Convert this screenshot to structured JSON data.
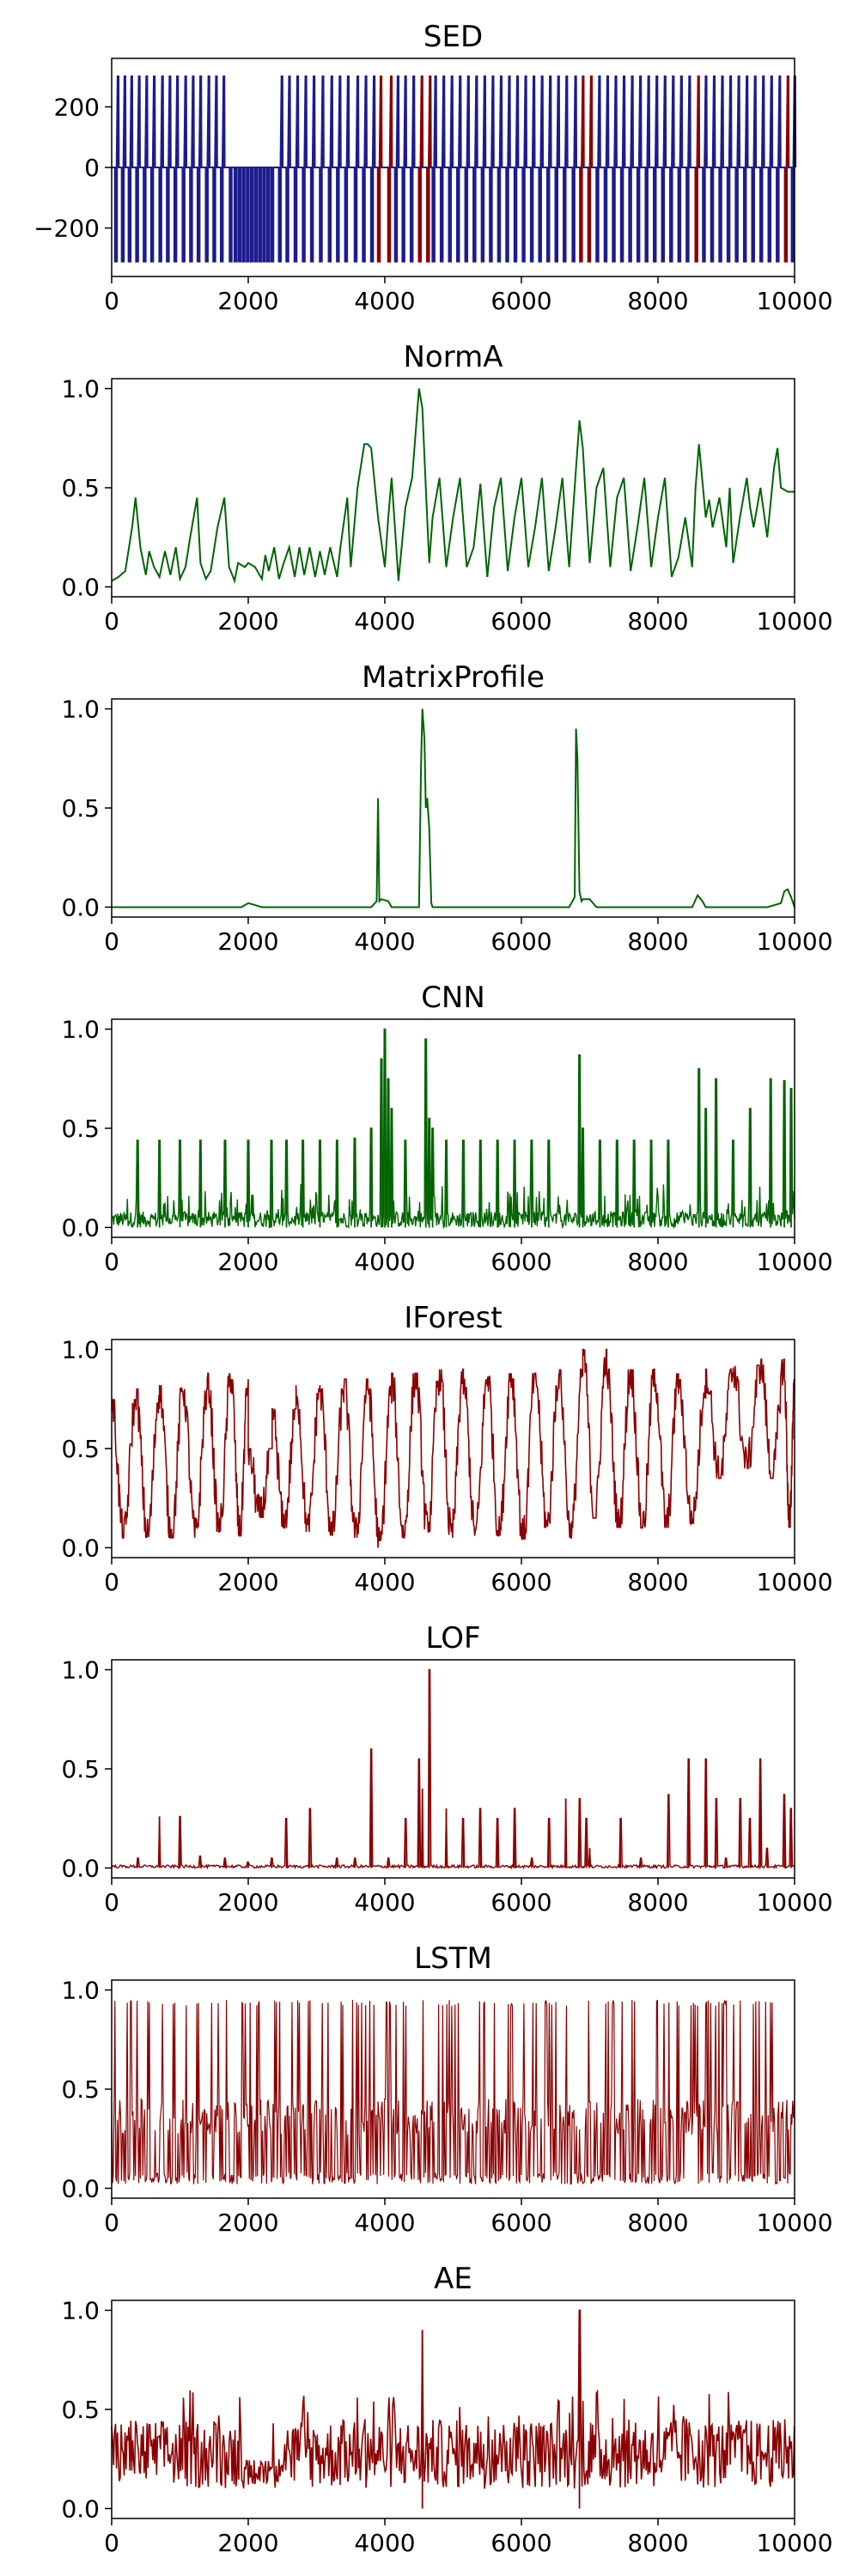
{
  "colors": {
    "sed_normal": "#1c1c8c",
    "sed_anomaly": "#8b0000",
    "green": "#006400",
    "red": "#8b0000"
  },
  "chart_data": [
    {
      "type": "line",
      "title": "SED",
      "xlim": [
        0,
        10000
      ],
      "ylim": [
        -360,
        360
      ],
      "x_ticks": [
        0,
        2000,
        4000,
        6000,
        8000,
        10000
      ],
      "y_ticks": [
        -200,
        0,
        200
      ],
      "y_tick_labels": [
        "−200",
        "0",
        "200"
      ],
      "color": "#1c1c8c",
      "pulse_amplitude": {
        "positive": 300,
        "negative": -310
      },
      "anomaly_ranges": [
        [
          3850,
          4050
        ],
        [
          4500,
          4650
        ],
        [
          6850,
          7000
        ],
        [
          8550,
          8650
        ],
        [
          9750,
          9950
        ]
      ],
      "anomaly_color": "#8b0000",
      "pulses_x": [
        50,
        150,
        250,
        360,
        470,
        580,
        700,
        810,
        920,
        1040,
        1150,
        1260,
        1380,
        1490,
        1600,
        1730,
        1800,
        1860,
        1920,
        1980,
        2040,
        2100,
        2160,
        2220,
        2280,
        2340,
        2450,
        2560,
        2680,
        2800,
        2920,
        3050,
        3180,
        3300,
        3420,
        3560,
        3680,
        3800,
        3900,
        4050,
        4150,
        4260,
        4380,
        4500,
        4620,
        4700,
        4820,
        4940,
        5060,
        5180,
        5300,
        5420,
        5540,
        5660,
        5780,
        5900,
        6020,
        6140,
        6260,
        6380,
        6500,
        6620,
        6750,
        6860,
        6980,
        7100,
        7220,
        7340,
        7460,
        7580,
        7700,
        7820,
        7940,
        8060,
        8180,
        8300,
        8420,
        8550,
        8660,
        8780,
        8900,
        9020,
        9140,
        9260,
        9380,
        9500,
        9620,
        9740,
        9860,
        9960
      ]
    },
    {
      "type": "line",
      "title": "NormA",
      "xlim": [
        0,
        10000
      ],
      "ylim": [
        -0.05,
        1.05
      ],
      "x_ticks": [
        0,
        2000,
        4000,
        6000,
        8000,
        10000
      ],
      "y_ticks": [
        0.0,
        0.5,
        1.0
      ],
      "color": "#006400",
      "x": [
        0,
        100,
        200,
        300,
        350,
        420,
        500,
        550,
        620,
        700,
        780,
        860,
        940,
        1000,
        1080,
        1150,
        1250,
        1300,
        1380,
        1450,
        1550,
        1650,
        1720,
        1800,
        1850,
        1950,
        2000,
        2100,
        2200,
        2250,
        2300,
        2380,
        2450,
        2520,
        2600,
        2680,
        2750,
        2820,
        2900,
        2980,
        3050,
        3120,
        3200,
        3300,
        3350,
        3450,
        3500,
        3600,
        3700,
        3750,
        3800,
        3900,
        4000,
        4050,
        4100,
        4200,
        4300,
        4400,
        4500,
        4550,
        4600,
        4650,
        4700,
        4800,
        4900,
        5000,
        5100,
        5200,
        5300,
        5400,
        5500,
        5600,
        5700,
        5800,
        5900,
        6000,
        6100,
        6200,
        6300,
        6400,
        6500,
        6600,
        6700,
        6800,
        6850,
        6900,
        6950,
        7000,
        7100,
        7200,
        7300,
        7400,
        7500,
        7600,
        7700,
        7800,
        7900,
        8000,
        8100,
        8200,
        8300,
        8400,
        8500,
        8550,
        8600,
        8700,
        8750,
        8800,
        8900,
        9000,
        9050,
        9100,
        9200,
        9300,
        9350,
        9400,
        9500,
        9600,
        9700,
        9750,
        9800,
        9900,
        10000
      ],
      "values": [
        0.03,
        0.05,
        0.08,
        0.3,
        0.45,
        0.2,
        0.06,
        0.18,
        0.1,
        0.05,
        0.18,
        0.06,
        0.2,
        0.04,
        0.1,
        0.25,
        0.45,
        0.12,
        0.04,
        0.08,
        0.3,
        0.45,
        0.1,
        0.03,
        0.12,
        0.1,
        0.12,
        0.1,
        0.04,
        0.16,
        0.08,
        0.2,
        0.04,
        0.12,
        0.2,
        0.05,
        0.2,
        0.06,
        0.2,
        0.05,
        0.18,
        0.06,
        0.2,
        0.05,
        0.2,
        0.45,
        0.1,
        0.5,
        0.72,
        0.72,
        0.7,
        0.35,
        0.1,
        0.35,
        0.55,
        0.03,
        0.4,
        0.55,
        1.0,
        0.9,
        0.5,
        0.12,
        0.35,
        0.55,
        0.1,
        0.35,
        0.55,
        0.1,
        0.2,
        0.52,
        0.05,
        0.4,
        0.55,
        0.08,
        0.35,
        0.55,
        0.1,
        0.3,
        0.55,
        0.08,
        0.3,
        0.55,
        0.1,
        0.6,
        0.84,
        0.7,
        0.4,
        0.12,
        0.5,
        0.6,
        0.1,
        0.45,
        0.55,
        0.08,
        0.3,
        0.55,
        0.1,
        0.35,
        0.55,
        0.05,
        0.15,
        0.35,
        0.1,
        0.5,
        0.72,
        0.35,
        0.44,
        0.3,
        0.45,
        0.2,
        0.5,
        0.12,
        0.35,
        0.55,
        0.4,
        0.3,
        0.5,
        0.25,
        0.6,
        0.7,
        0.5,
        0.48,
        0.48
      ]
    },
    {
      "type": "line",
      "title": "MatrixProfile",
      "xlim": [
        0,
        10000
      ],
      "ylim": [
        -0.05,
        1.05
      ],
      "x_ticks": [
        0,
        2000,
        4000,
        6000,
        8000,
        10000
      ],
      "y_ticks": [
        0.0,
        0.5,
        1.0
      ],
      "color": "#006400",
      "x": [
        0,
        1900,
        2000,
        2100,
        2200,
        3800,
        3880,
        3900,
        3920,
        3950,
        4050,
        4100,
        4500,
        4530,
        4550,
        4580,
        4600,
        4620,
        4650,
        4680,
        4700,
        6700,
        6780,
        6800,
        6820,
        6850,
        6880,
        6900,
        7000,
        7100,
        8500,
        8580,
        8650,
        8700,
        9600,
        9800,
        9850,
        9900,
        9950,
        10000
      ],
      "values": [
        0.0,
        0.0,
        0.02,
        0.01,
        0.0,
        0.0,
        0.03,
        0.55,
        0.03,
        0.04,
        0.03,
        0.0,
        0.0,
        0.7,
        1.0,
        0.85,
        0.5,
        0.55,
        0.4,
        0.02,
        0.0,
        0.0,
        0.05,
        0.9,
        0.75,
        0.08,
        0.03,
        0.04,
        0.04,
        0.0,
        0.0,
        0.06,
        0.03,
        0.0,
        0.0,
        0.02,
        0.08,
        0.09,
        0.05,
        0.0
      ]
    },
    {
      "type": "line",
      "title": "CNN",
      "xlim": [
        0,
        10000
      ],
      "ylim": [
        -0.05,
        1.05
      ],
      "x_ticks": [
        0,
        2000,
        4000,
        6000,
        8000,
        10000
      ],
      "y_ticks": [
        0.0,
        0.5,
        1.0
      ],
      "color": "#006400",
      "peaks": [
        [
          380,
          0.44
        ],
        [
          700,
          0.44
        ],
        [
          1000,
          0.44
        ],
        [
          1300,
          0.44
        ],
        [
          1660,
          0.44
        ],
        [
          2000,
          0.44
        ],
        [
          2340,
          0.44
        ],
        [
          2560,
          0.44
        ],
        [
          2800,
          0.44
        ],
        [
          3050,
          0.44
        ],
        [
          3300,
          0.44
        ],
        [
          3560,
          0.45
        ],
        [
          3800,
          0.5
        ],
        [
          3950,
          0.85
        ],
        [
          4000,
          1.0
        ],
        [
          4050,
          0.75
        ],
        [
          4100,
          0.6
        ],
        [
          4300,
          0.44
        ],
        [
          4600,
          0.95
        ],
        [
          4650,
          0.55
        ],
        [
          4700,
          0.5
        ],
        [
          4900,
          0.44
        ],
        [
          5150,
          0.44
        ],
        [
          5400,
          0.44
        ],
        [
          5650,
          0.44
        ],
        [
          5900,
          0.44
        ],
        [
          6150,
          0.44
        ],
        [
          6400,
          0.44
        ],
        [
          6850,
          0.87
        ],
        [
          6900,
          0.5
        ],
        [
          7150,
          0.44
        ],
        [
          7400,
          0.44
        ],
        [
          7650,
          0.44
        ],
        [
          7900,
          0.44
        ],
        [
          8150,
          0.44
        ],
        [
          8600,
          0.8
        ],
        [
          8700,
          0.6
        ],
        [
          8850,
          0.75
        ],
        [
          9100,
          0.44
        ],
        [
          9350,
          0.6
        ],
        [
          9650,
          0.75
        ],
        [
          9850,
          0.74
        ],
        [
          9950,
          0.7
        ]
      ]
    },
    {
      "type": "line",
      "title": "IForest",
      "xlim": [
        0,
        10000
      ],
      "ylim": [
        -0.05,
        1.05
      ],
      "x_ticks": [
        0,
        2000,
        4000,
        6000,
        8000,
        10000
      ],
      "y_ticks": [
        0.0,
        0.5,
        1.0
      ],
      "color": "#8b0000",
      "cycles": [
        [
          0,
          0.75,
          0.05
        ],
        [
          350,
          0.8,
          0.05
        ],
        [
          700,
          0.82,
          0.05
        ],
        [
          1050,
          0.8,
          0.05
        ],
        [
          1400,
          0.88,
          0.08
        ],
        [
          1750,
          0.85,
          0.06
        ],
        [
          2000,
          0.5,
          0.15
        ],
        [
          2350,
          0.7,
          0.1
        ],
        [
          2700,
          0.82,
          0.08
        ],
        [
          3050,
          0.8,
          0.06
        ],
        [
          3400,
          0.85,
          0.05
        ],
        [
          3750,
          0.82,
          0.0
        ],
        [
          4100,
          0.88,
          0.05
        ],
        [
          4450,
          0.88,
          0.08
        ],
        [
          4800,
          0.9,
          0.05
        ],
        [
          5150,
          0.85,
          0.06
        ],
        [
          5500,
          0.88,
          0.06
        ],
        [
          5850,
          0.88,
          0.04
        ],
        [
          6200,
          0.88,
          0.1
        ],
        [
          6550,
          0.9,
          0.05
        ],
        [
          6900,
          1.0,
          0.15
        ],
        [
          7250,
          0.9,
          0.1
        ],
        [
          7600,
          0.9,
          0.1
        ],
        [
          7950,
          0.88,
          0.1
        ],
        [
          8300,
          0.85,
          0.12
        ],
        [
          8700,
          0.9,
          0.35
        ],
        [
          9100,
          0.92,
          0.4
        ],
        [
          9500,
          0.95,
          0.35
        ],
        [
          9850,
          0.85,
          0.1
        ]
      ]
    },
    {
      "type": "line",
      "title": "LOF",
      "xlim": [
        0,
        10000
      ],
      "ylim": [
        -0.05,
        1.05
      ],
      "x_ticks": [
        0,
        2000,
        4000,
        6000,
        8000,
        10000
      ],
      "y_ticks": [
        0.0,
        0.5,
        1.0
      ],
      "color": "#8b0000",
      "peaks": [
        [
          380,
          0.05
        ],
        [
          700,
          0.26
        ],
        [
          1000,
          0.26
        ],
        [
          1300,
          0.06
        ],
        [
          1660,
          0.05
        ],
        [
          2000,
          0.03
        ],
        [
          2340,
          0.05
        ],
        [
          2560,
          0.25
        ],
        [
          2900,
          0.3
        ],
        [
          3300,
          0.05
        ],
        [
          3560,
          0.05
        ],
        [
          3800,
          0.6
        ],
        [
          4050,
          0.05
        ],
        [
          4300,
          0.25
        ],
        [
          4500,
          0.55
        ],
        [
          4550,
          0.4
        ],
        [
          4650,
          1.0
        ],
        [
          4900,
          0.3
        ],
        [
          5150,
          0.25
        ],
        [
          5400,
          0.3
        ],
        [
          5650,
          0.25
        ],
        [
          5900,
          0.3
        ],
        [
          6150,
          0.05
        ],
        [
          6400,
          0.25
        ],
        [
          6650,
          0.35
        ],
        [
          6850,
          0.35
        ],
        [
          6950,
          0.25
        ],
        [
          7000,
          0.1
        ],
        [
          7450,
          0.25
        ],
        [
          7750,
          0.05
        ],
        [
          8150,
          0.37
        ],
        [
          8450,
          0.55
        ],
        [
          8700,
          0.55
        ],
        [
          8850,
          0.35
        ],
        [
          9000,
          0.05
        ],
        [
          9200,
          0.35
        ],
        [
          9350,
          0.25
        ],
        [
          9500,
          0.55
        ],
        [
          9600,
          0.1
        ],
        [
          9850,
          0.37
        ],
        [
          9950,
          0.3
        ]
      ]
    },
    {
      "type": "line",
      "title": "LSTM",
      "xlim": [
        0,
        10000
      ],
      "ylim": [
        -0.05,
        1.05
      ],
      "x_ticks": [
        0,
        2000,
        4000,
        6000,
        8000,
        10000
      ],
      "y_ticks": [
        0.0,
        0.5,
        1.0
      ],
      "color": "#8b0000",
      "spike_max": 0.95,
      "band_level": 0.45
    },
    {
      "type": "line",
      "title": "AE",
      "xlim": [
        0,
        10000
      ],
      "ylim": [
        -0.05,
        1.05
      ],
      "x_ticks": [
        0,
        2000,
        4000,
        6000,
        8000,
        10000
      ],
      "y_ticks": [
        0.0,
        0.5,
        1.0
      ],
      "color": "#8b0000",
      "peaks": [
        [
          4550,
          0.9
        ],
        [
          6850,
          1.0
        ]
      ]
    }
  ]
}
